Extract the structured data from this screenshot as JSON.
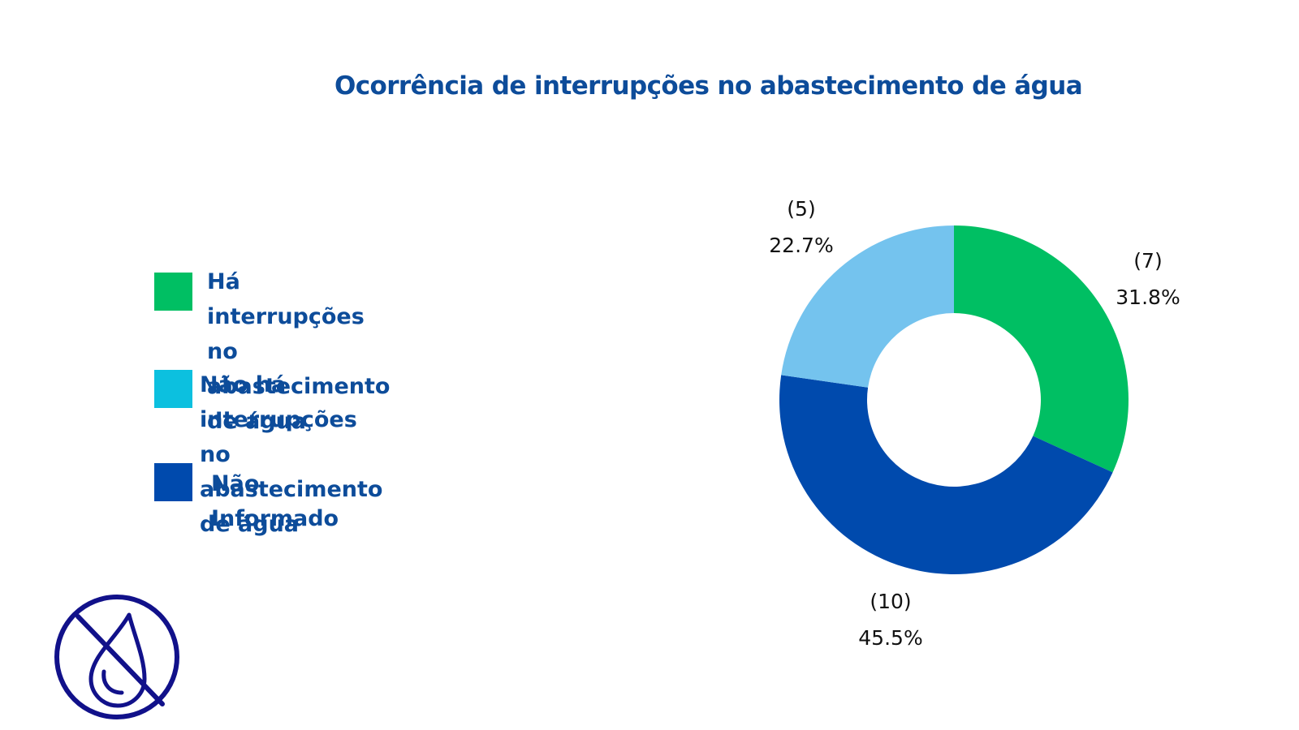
{
  "chart_data": {
    "type": "pie",
    "title": "Ocorrência de interrupções no abastecimento de água",
    "categories": [
      "Há interrupções no abastecimento de água",
      "Não há  interrupções no abastecimento de água",
      "Não Informado"
    ],
    "values": [
      7,
      5,
      10
    ],
    "percent_labels": [
      "31.8%",
      "22.7%",
      "45.5%"
    ],
    "count_labels": [
      "(7)",
      "(5)",
      "(10)"
    ],
    "slice_colors": [
      "#00bf63",
      "#74c3ee",
      "#004aad"
    ],
    "legend_colors": [
      "#00bf63",
      "#0cc0df",
      "#004aad"
    ],
    "donut": true,
    "legend_position": "left"
  },
  "legend": {
    "item_1": "Há interrupções no abastecimento\nde água",
    "item_2": "Não há  interrupções no\nabastecimento de água",
    "item_3": "Não Informado"
  },
  "decorations": {
    "icon": "no-water-drop-icon",
    "icon_color": "#11118a"
  }
}
